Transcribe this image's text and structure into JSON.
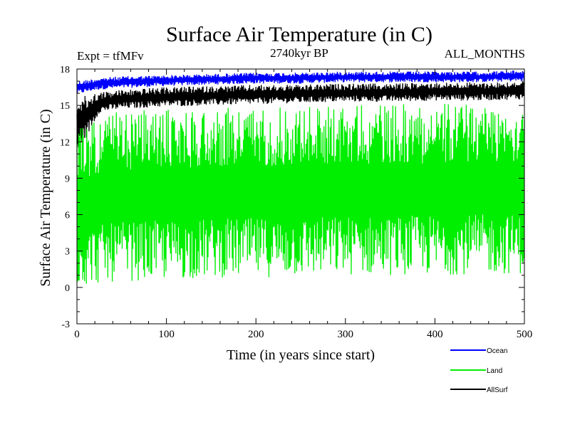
{
  "chart_data": {
    "type": "line",
    "title": "Surface Air Temperature (in C)",
    "subtitle_left": "Expt = tfMFv",
    "subtitle_center": "2740kyr BP",
    "subtitle_right": "ALL_MONTHS",
    "xlabel": "Time (in years since start)",
    "ylabel": "Surface Air Temperature (in C)",
    "xlim": [
      0,
      500
    ],
    "ylim": [
      -3,
      18
    ],
    "xticks": [
      0,
      100,
      200,
      300,
      400,
      500
    ],
    "yticks": [
      -3,
      0,
      3,
      6,
      9,
      12,
      15,
      18
    ],
    "grid": false,
    "legend_position": "bottom-right",
    "series": [
      {
        "name": "Ocean",
        "color": "#0000ff",
        "x": [
          0,
          25,
          50,
          100,
          150,
          200,
          250,
          300,
          350,
          400,
          450,
          500
        ],
        "low": [
          15.9,
          16.3,
          16.4,
          16.6,
          16.7,
          16.8,
          16.8,
          16.9,
          16.9,
          16.9,
          16.9,
          17.0
        ],
        "high": [
          17.0,
          17.3,
          17.4,
          17.5,
          17.6,
          17.7,
          17.7,
          17.8,
          17.8,
          17.8,
          17.8,
          17.9
        ]
      },
      {
        "name": "Land",
        "color": "#00ee00",
        "x": [
          0,
          25,
          50,
          100,
          150,
          200,
          250,
          300,
          350,
          400,
          450,
          500
        ],
        "low": [
          0.0,
          0.3,
          0.5,
          0.6,
          0.8,
          0.8,
          0.9,
          1.0,
          1.0,
          1.0,
          1.1,
          1.1
        ],
        "high": [
          13.5,
          14.2,
          14.5,
          14.7,
          14.8,
          14.9,
          15.0,
          15.1,
          15.1,
          15.2,
          15.2,
          15.3
        ]
      },
      {
        "name": "AllSurf",
        "color": "#000000",
        "x": [
          0,
          25,
          50,
          100,
          150,
          200,
          250,
          300,
          350,
          400,
          450,
          500
        ],
        "low": [
          10.8,
          14.4,
          14.7,
          14.9,
          15.0,
          15.1,
          15.2,
          15.3,
          15.3,
          15.4,
          15.4,
          15.5
        ],
        "high": [
          15.6,
          16.1,
          16.3,
          16.5,
          16.6,
          16.7,
          16.7,
          16.8,
          16.8,
          16.9,
          16.9,
          17.0
        ]
      }
    ]
  }
}
